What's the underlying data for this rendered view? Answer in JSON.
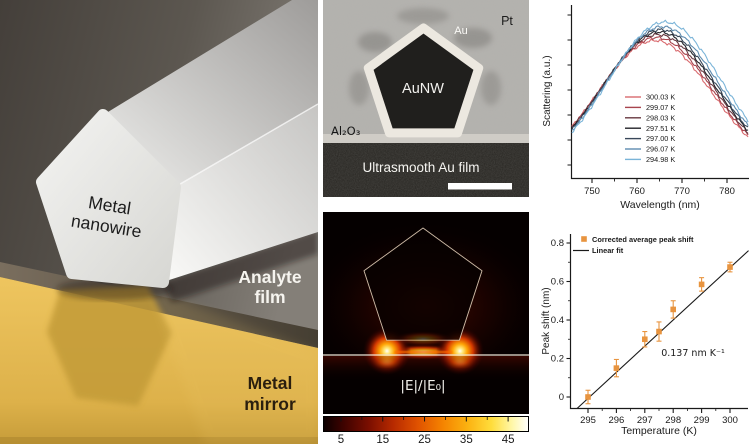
{
  "left_panel": {
    "nanowire_label": {
      "line1": "Metal",
      "line2": "nanowire"
    },
    "analyte_label": {
      "line1": "Analyte",
      "line2": "film"
    },
    "mirror_label": {
      "line1": "Metal",
      "line2": "mirror"
    },
    "colors": {
      "gold": "#e0b34e",
      "film": "#55504a",
      "wire": "#e9e9e6"
    }
  },
  "tem_panel": {
    "label_pt": "Pt",
    "label_au": "Au",
    "label_core": "AuNW",
    "label_oxide": "Al₂O₃",
    "label_film": "Ultrasmooth Au film"
  },
  "field_panel": {
    "field_label": "|E|/|E₀|",
    "colorbar": {
      "range": [
        0.7,
        50
      ],
      "ticks": [
        5,
        15,
        25,
        35,
        45
      ],
      "minor_ticks": [
        10,
        20,
        30,
        40
      ]
    }
  },
  "chart_data": [
    {
      "id": "scattering-spectra",
      "type": "line",
      "xlabel": "Wavelength (nm)",
      "ylabel": "Scattering (a.u.)",
      "xlim": [
        745.5,
        785
      ],
      "xticks": [
        750,
        760,
        770,
        780
      ],
      "xminor_ticks": [
        755,
        765,
        775
      ],
      "grid": false,
      "legend_position": "inside-lower-left",
      "sigma_nm": 12.5,
      "series": [
        {
          "name": "300.03 K",
          "color": "#d96a6e",
          "peak_nm": 764.0,
          "amplitude": 0.875
        },
        {
          "name": "299.07 K",
          "color": "#a8444e",
          "peak_nm": 764.3,
          "amplitude": 0.895
        },
        {
          "name": "298.03 K",
          "color": "#693a42",
          "peak_nm": 764.6,
          "amplitude": 0.915
        },
        {
          "name": "297.51 K",
          "color": "#24242a",
          "peak_nm": 764.9,
          "amplitude": 0.932
        },
        {
          "name": "297.00 K",
          "color": "#39485a",
          "peak_nm": 765.2,
          "amplitude": 0.948
        },
        {
          "name": "296.07 K",
          "color": "#5e8cb0",
          "peak_nm": 765.6,
          "amplitude": 0.968
        },
        {
          "name": "294.98 K",
          "color": "#7ab4d8",
          "peak_nm": 766.2,
          "amplitude": 1.0
        }
      ]
    },
    {
      "id": "peak-shift",
      "type": "scatter",
      "xlabel": "Temperature (K)",
      "ylabel": "Peak shift (nm)",
      "xlim": [
        294.45,
        300.6
      ],
      "ylim": [
        -0.07,
        0.86
      ],
      "xticks": [
        295,
        296,
        297,
        298,
        299,
        300
      ],
      "yticks": [
        0,
        0.2,
        0.4,
        0.6,
        0.8
      ],
      "marker_color": "#e8943f",
      "fit_color": "#1a1a1a",
      "legend": [
        "Corrected average peak shift",
        "Linear fit"
      ],
      "annotation": "0.137 nm K⁻¹",
      "points": [
        {
          "x": 295.0,
          "y": 0.0,
          "err": 0.035
        },
        {
          "x": 296.0,
          "y": 0.15,
          "err": 0.045
        },
        {
          "x": 297.0,
          "y": 0.3,
          "err": 0.04
        },
        {
          "x": 297.5,
          "y": 0.34,
          "err": 0.05
        },
        {
          "x": 298.0,
          "y": 0.455,
          "err": 0.045
        },
        {
          "x": 299.0,
          "y": 0.585,
          "err": 0.035
        },
        {
          "x": 300.0,
          "y": 0.675,
          "err": 0.025
        }
      ],
      "fit": {
        "slope_nm_per_K": 0.137,
        "x0_K": 295.05
      }
    }
  ]
}
